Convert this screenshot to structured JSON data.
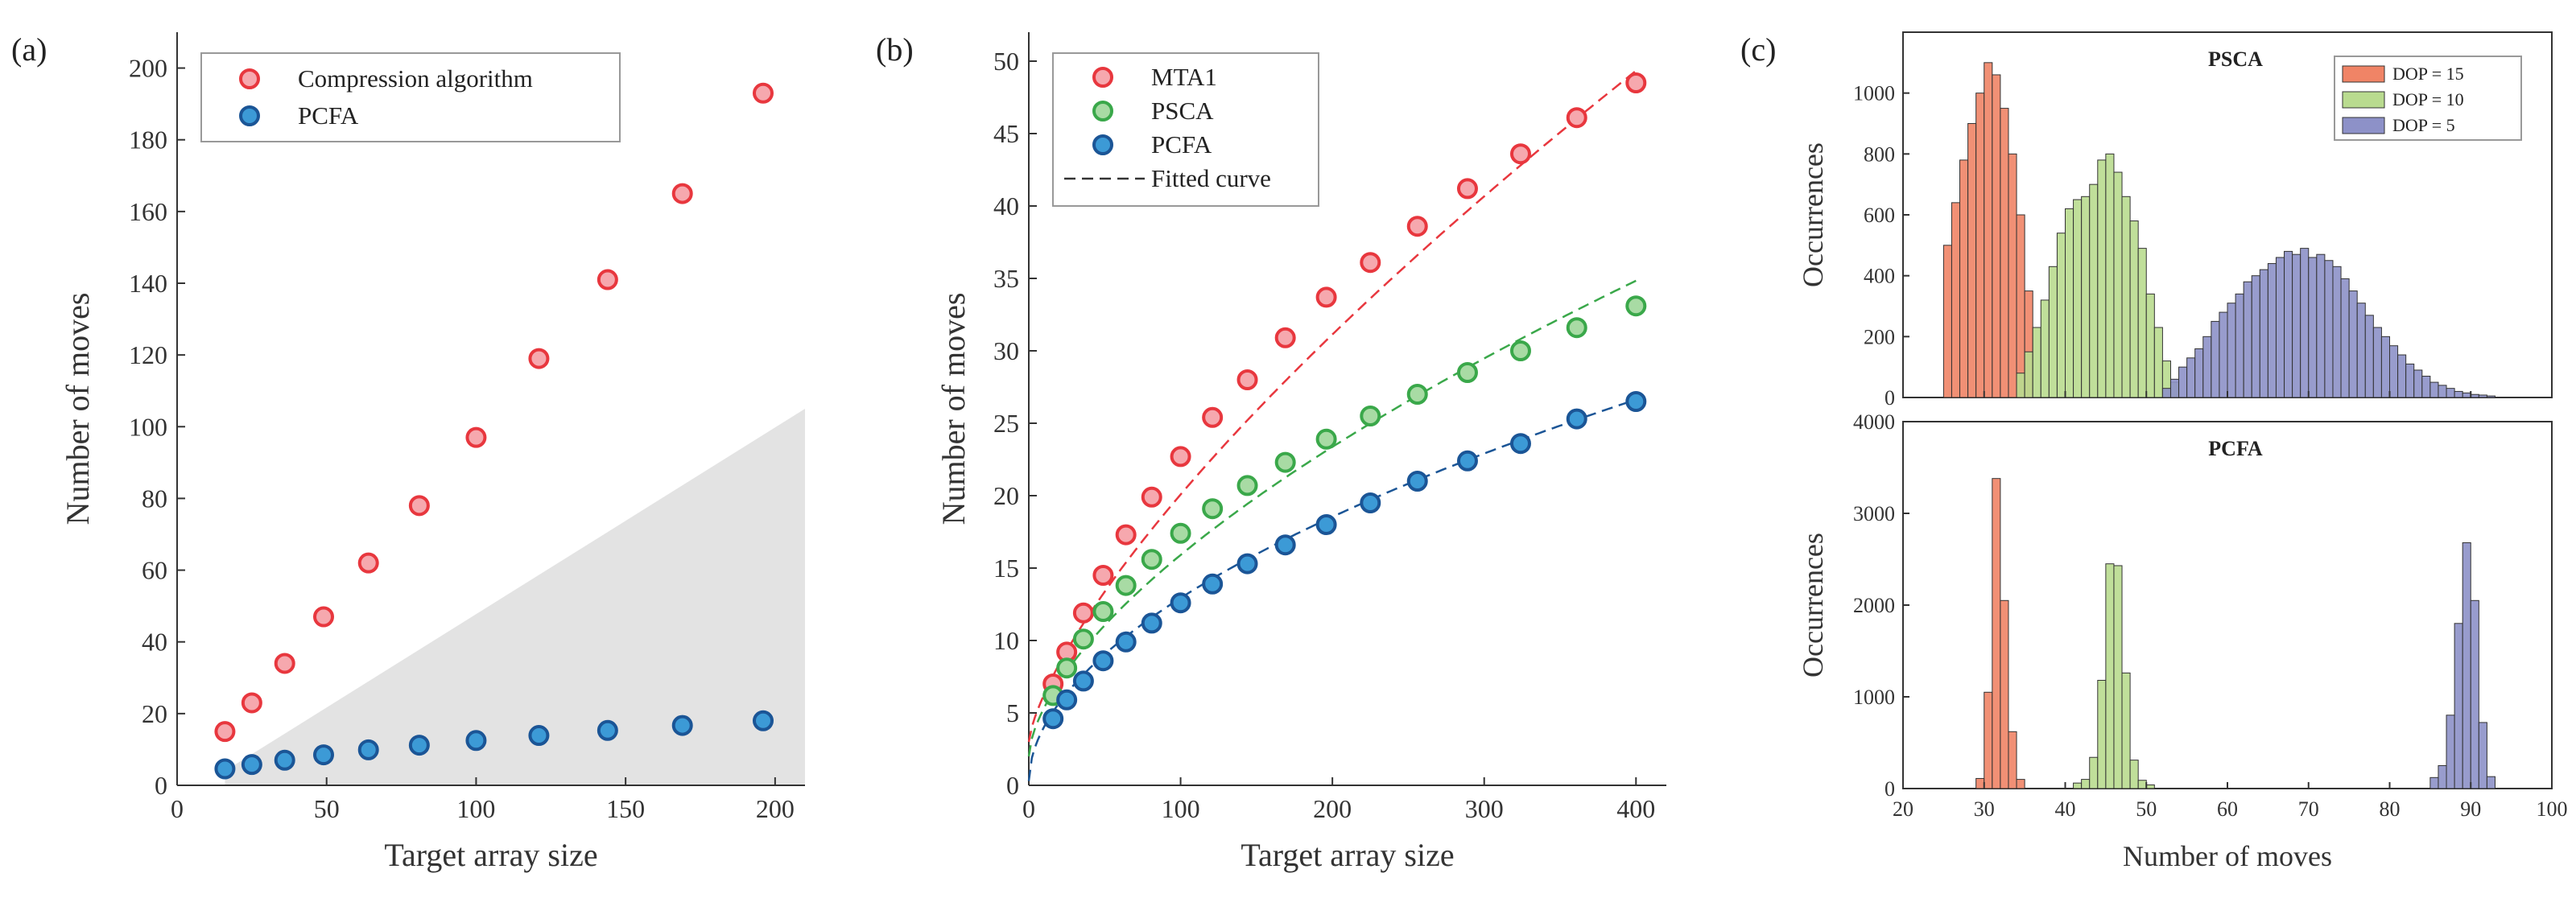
{
  "panels": {
    "a": {
      "label": "(a)"
    },
    "b": {
      "label": "(b)"
    },
    "c": {
      "label": "(c)"
    }
  },
  "chart_data": [
    {
      "id": "a",
      "type": "scatter",
      "xlabel": "Target array size",
      "ylabel": "Number of moves",
      "xlim": [
        0,
        210
      ],
      "ylim": [
        0,
        210
      ],
      "xticks": [
        0,
        50,
        100,
        150,
        200
      ],
      "yticks": [
        0,
        20,
        40,
        60,
        80,
        100,
        120,
        140,
        160,
        180,
        200
      ],
      "shaded_region": {
        "description": "gray wedge",
        "vertices": [
          [
            16,
            4
          ],
          [
            210,
            105
          ],
          [
            210,
            0
          ],
          [
            16,
            0
          ]
        ]
      },
      "legend": {
        "location": "top-left"
      },
      "series": [
        {
          "name": "Compression algorithm",
          "color": "#e8373e",
          "fill": "#f6a8ae",
          "x": [
            16,
            25,
            36,
            49,
            64,
            81,
            100,
            121,
            144,
            169,
            196
          ],
          "y": [
            15,
            23,
            34,
            47,
            62,
            78,
            97,
            119,
            141,
            165,
            193
          ]
        },
        {
          "name": "PCFA",
          "color": "#1b5596",
          "fill": "#3c9ad6",
          "x": [
            16,
            25,
            36,
            49,
            64,
            81,
            100,
            121,
            144,
            169,
            196
          ],
          "y": [
            4.6,
            5.8,
            7.0,
            8.5,
            9.9,
            11.2,
            12.5,
            13.9,
            15.3,
            16.7,
            18.0
          ]
        }
      ]
    },
    {
      "id": "b",
      "type": "scatter",
      "xlabel": "Target array size",
      "ylabel": "Number of moves",
      "xlim": [
        0,
        420
      ],
      "ylim": [
        0,
        52
      ],
      "xticks": [
        0,
        100,
        200,
        300,
        400
      ],
      "yticks": [
        0,
        5,
        10,
        15,
        20,
        25,
        30,
        35,
        40,
        45,
        50
      ],
      "legend": {
        "location": "top-left",
        "fitted_label": "Fitted curve"
      },
      "series": [
        {
          "name": "MTA1",
          "color": "#e8373e",
          "fill": "#f6a8ae",
          "x": [
            16,
            25,
            36,
            49,
            64,
            81,
            100,
            121,
            144,
            169,
            196,
            225,
            256,
            289,
            324,
            361,
            400
          ],
          "y": [
            7.0,
            9.2,
            11.9,
            14.5,
            17.3,
            19.9,
            22.7,
            25.4,
            28.0,
            30.9,
            33.7,
            36.1,
            38.6,
            41.2,
            43.6,
            46.1,
            48.5
          ]
        },
        {
          "name": "PSCA",
          "color": "#3aa84a",
          "fill": "#a8dba4",
          "x": [
            16,
            25,
            36,
            49,
            64,
            81,
            100,
            121,
            144,
            169,
            196,
            225,
            256,
            289,
            324,
            361,
            400
          ],
          "y": [
            6.2,
            8.1,
            10.1,
            12.0,
            13.8,
            15.6,
            17.4,
            19.1,
            20.7,
            22.3,
            23.9,
            25.5,
            27.0,
            28.5,
            30.0,
            31.6,
            33.1
          ]
        },
        {
          "name": "PCFA",
          "color": "#1b5596",
          "fill": "#3c9ad6",
          "x": [
            16,
            25,
            36,
            49,
            64,
            81,
            100,
            121,
            144,
            169,
            196,
            225,
            256,
            289,
            324,
            361,
            400
          ],
          "y": [
            4.6,
            5.9,
            7.2,
            8.6,
            9.9,
            11.2,
            12.6,
            13.9,
            15.3,
            16.6,
            18.0,
            19.5,
            21.0,
            22.4,
            23.6,
            25.3,
            26.5
          ]
        }
      ],
      "fits": [
        {
          "series": "MTA1",
          "color": "#e8373e",
          "a": 3.0,
          "b": 0.62,
          "c": 0.72
        },
        {
          "series": "PSCA",
          "color": "#3aa84a",
          "a": 2.0,
          "b": 0.8,
          "c": 0.62
        },
        {
          "series": "PCFA",
          "color": "#1b5596",
          "a": 0.3,
          "b": 1.1,
          "c": 0.53
        }
      ]
    },
    {
      "id": "c-top",
      "type": "bar",
      "title": "PSCA",
      "xlabel": "Number of moves",
      "ylabel": "Occurrences",
      "xlim": [
        20,
        100
      ],
      "ylim": [
        0,
        1200
      ],
      "yticks": [
        0,
        200,
        400,
        600,
        800,
        1000
      ],
      "bin_width": 1,
      "series": [
        {
          "name": "DOP = 15",
          "color": "#f08466",
          "start": 25,
          "values": [
            500,
            640,
            780,
            900,
            1000,
            1100,
            1060,
            950,
            800,
            600,
            350
          ]
        },
        {
          "name": "DOP = 10",
          "color": "#b9db8f",
          "start": 34,
          "values": [
            80,
            150,
            230,
            320,
            430,
            540,
            620,
            650,
            660,
            700,
            780,
            800,
            740,
            660,
            580,
            490,
            340,
            230,
            120,
            50
          ]
        },
        {
          "name": "DOP = 5",
          "color": "#8d91c8",
          "start": 52,
          "values": [
            30,
            60,
            100,
            130,
            160,
            200,
            250,
            280,
            310,
            340,
            380,
            400,
            420,
            440,
            460,
            480,
            470,
            490,
            460,
            470,
            450,
            430,
            390,
            350,
            310,
            270,
            230,
            200,
            170,
            140,
            110,
            90,
            70,
            50,
            40,
            30,
            20,
            15,
            10,
            8,
            5
          ]
        }
      ]
    },
    {
      "id": "c-bottom",
      "type": "bar",
      "title": "PCFA",
      "xlabel": "Number of moves",
      "ylabel": "Occurrences",
      "xlim": [
        20,
        100
      ],
      "ylim": [
        0,
        4000
      ],
      "yticks": [
        0,
        1000,
        2000,
        3000,
        4000
      ],
      "xticks": [
        20,
        30,
        40,
        50,
        60,
        70,
        80,
        90,
        100
      ],
      "bin_width": 1,
      "series": [
        {
          "name": "DOP = 15",
          "color": "#f08466",
          "start": 29,
          "values": [
            110,
            1050,
            3380,
            2050,
            620,
            100
          ]
        },
        {
          "name": "DOP = 10",
          "color": "#b9db8f",
          "start": 41,
          "values": [
            60,
            100,
            340,
            1180,
            2450,
            2430,
            1260,
            310,
            90,
            40
          ]
        },
        {
          "name": "DOP = 5",
          "color": "#8d91c8",
          "start": 85,
          "values": [
            120,
            250,
            800,
            1800,
            2680,
            2050,
            720,
            130
          ]
        }
      ]
    }
  ]
}
